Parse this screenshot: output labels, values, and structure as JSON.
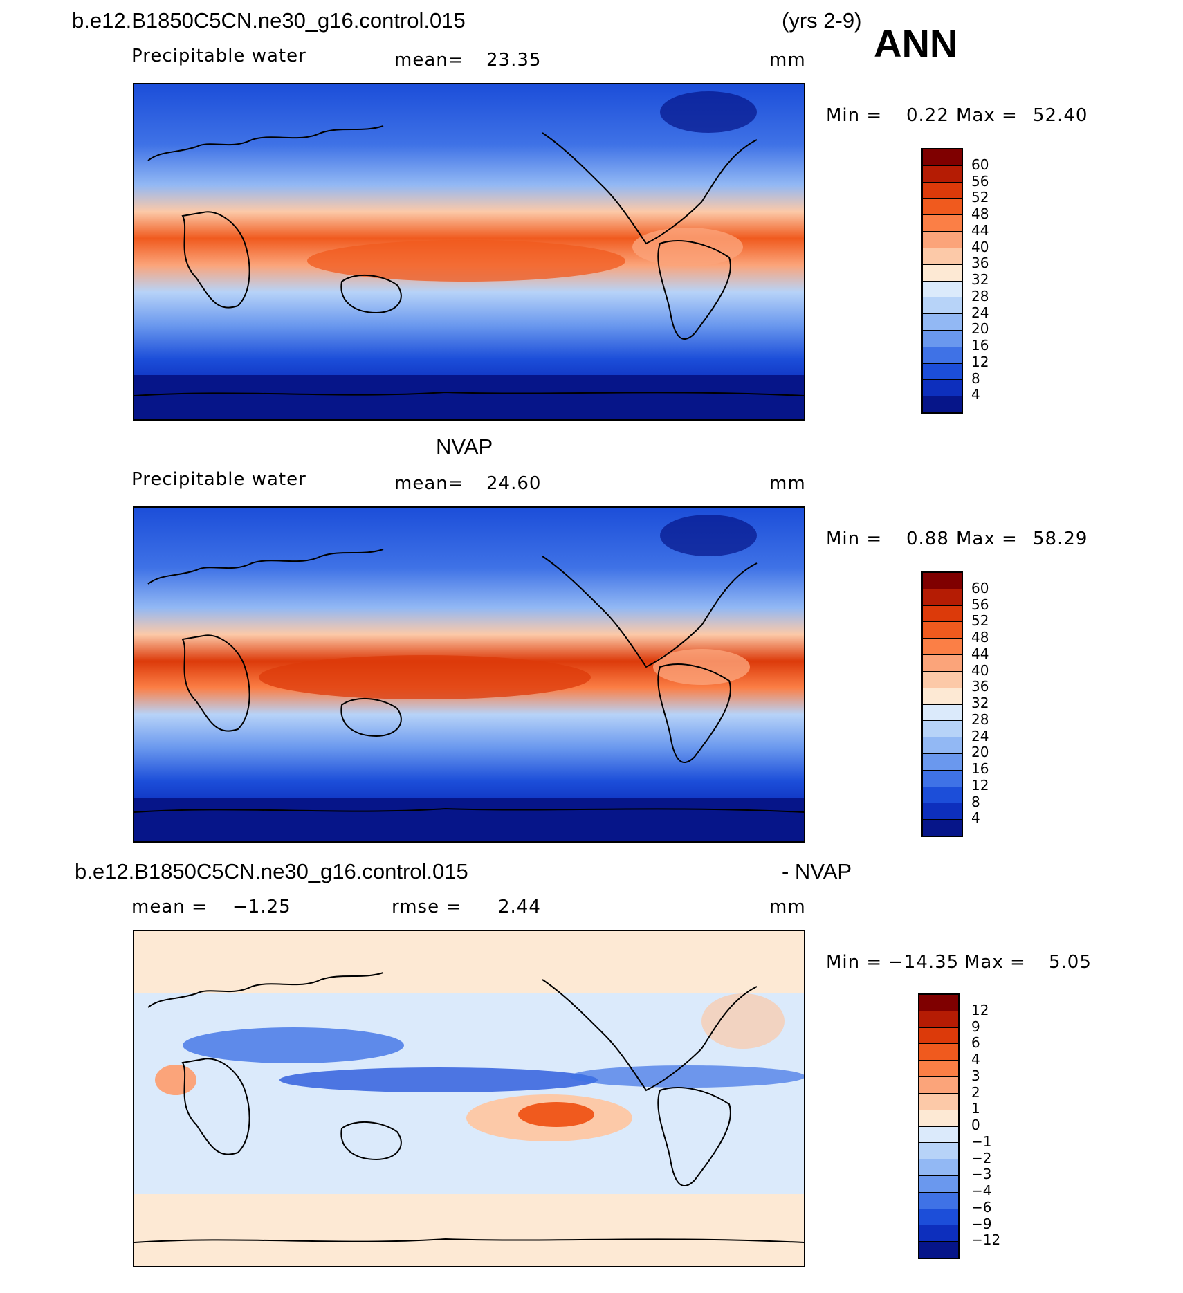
{
  "header": {
    "case_name": "b.e12.B1850C5CN.ne30_g16.control.015",
    "years": "(yrs 2-9)",
    "season": "ANN"
  },
  "panels": [
    {
      "id": "model",
      "variable": "Precipitable water",
      "stat_label": "mean=",
      "stat_value": "23.35",
      "units": "mm",
      "min_label": "Min =",
      "min_value": "0.22",
      "max_label": "Max =",
      "max_value": "52.40",
      "colorbar": {
        "ticks": [
          "60",
          "56",
          "52",
          "48",
          "44",
          "40",
          "36",
          "32",
          "28",
          "24",
          "20",
          "16",
          "12",
          "8",
          "4"
        ],
        "colors": [
          "#7f0000",
          "#b51c04",
          "#dc3a0a",
          "#f05a1e",
          "#fb7f46",
          "#fba47a",
          "#fcc9a8",
          "#fde9d4",
          "#dbeafb",
          "#b7d3f8",
          "#92b8f4",
          "#6a98ee",
          "#3f72e6",
          "#1c4ed9",
          "#0d2fbd",
          "#061589"
        ]
      }
    },
    {
      "id": "obs",
      "title": "NVAP",
      "variable": "Precipitable water",
      "stat_label": "mean=",
      "stat_value": "24.60",
      "units": "mm",
      "min_label": "Min =",
      "min_value": "0.88",
      "max_label": "Max =",
      "max_value": "58.29",
      "colorbar": {
        "ticks": [
          "60",
          "56",
          "52",
          "48",
          "44",
          "40",
          "36",
          "32",
          "28",
          "24",
          "20",
          "16",
          "12",
          "8",
          "4"
        ],
        "colors": [
          "#7f0000",
          "#b51c04",
          "#dc3a0a",
          "#f05a1e",
          "#fb7f46",
          "#fba47a",
          "#fcc9a8",
          "#fde9d4",
          "#dbeafb",
          "#b7d3f8",
          "#92b8f4",
          "#6a98ee",
          "#3f72e6",
          "#1c4ed9",
          "#0d2fbd",
          "#061589"
        ]
      }
    },
    {
      "id": "diff",
      "title_left": "b.e12.B1850C5CN.ne30_g16.control.015",
      "title_right": "- NVAP",
      "stat_label": "mean =",
      "stat_value": "−1.25",
      "rmse_label": "rmse =",
      "rmse_value": "2.44",
      "units": "mm",
      "min_label": "Min =",
      "min_value": "−14.35",
      "max_label": "Max =",
      "max_value": "5.05",
      "colorbar": {
        "ticks": [
          "12",
          "9",
          "6",
          "4",
          "3",
          "2",
          "1",
          "0",
          "−1",
          "−2",
          "−3",
          "−4",
          "−6",
          "−9",
          "−12"
        ],
        "colors": [
          "#7f0000",
          "#b51c04",
          "#dc3a0a",
          "#f05a1e",
          "#fb7f46",
          "#fba47a",
          "#fcc9a8",
          "#fde9d4",
          "#dbeafb",
          "#b7d3f8",
          "#92b8f4",
          "#6a98ee",
          "#3f72e6",
          "#1c4ed9",
          "#0d2fbd",
          "#061589"
        ]
      }
    }
  ]
}
